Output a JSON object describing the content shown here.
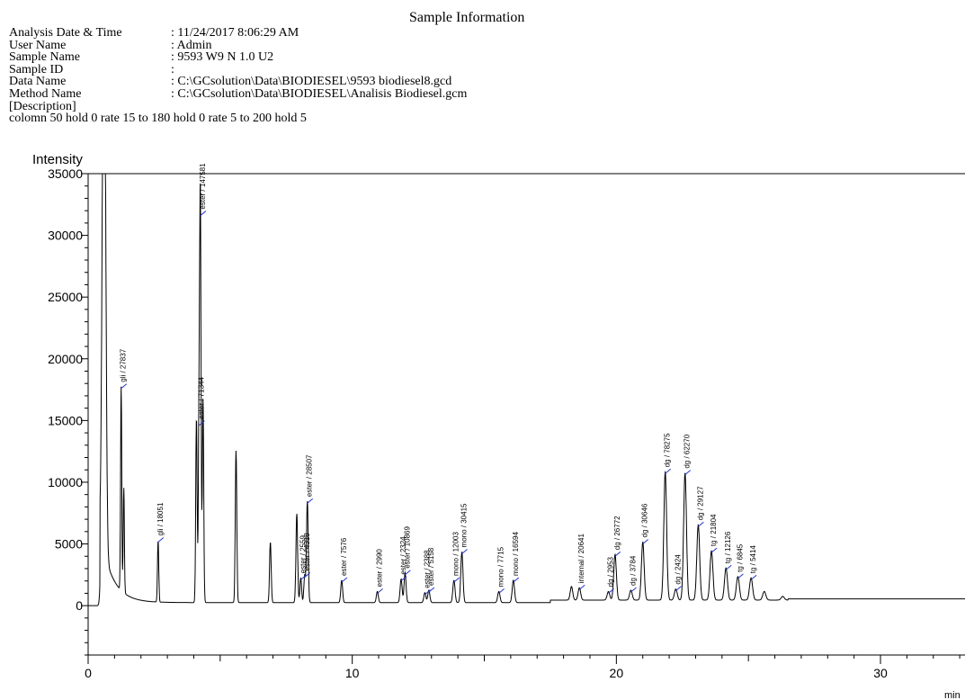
{
  "sample_info": {
    "title": "Sample Information",
    "rows": [
      {
        "label": "Analysis Date & Time",
        "value": ": 11/24/2017 8:06:29 AM"
      },
      {
        "label": "User Name",
        "value": ": Admin"
      },
      {
        "label": "Sample Name",
        "value": ": 9593 W9 N 1.0 U2"
      },
      {
        "label": "Sample ID",
        "value": ":"
      },
      {
        "label": "Data Name",
        "value": ": C:\\GCsolution\\Data\\BIODIESEL\\9593  biodiesel8.gcd"
      },
      {
        "label": "Method Name",
        "value": ": C:\\GCsolution\\Data\\BIODIESEL\\Analisis Biodiesel.gcm"
      }
    ],
    "description_label": "[Description]",
    "description": "colomn 50 hold 0 rate 15 to 180 hold 0 rate 5 to 200 hold 5"
  },
  "chart_data": {
    "type": "line",
    "ylabel": "Intensity",
    "xlabel": "min",
    "xlim": [
      0,
      33.2
    ],
    "ylim": [
      -4000,
      35000
    ],
    "x_ticks": [
      0,
      10,
      20,
      30
    ],
    "y_ticks": [
      0,
      5000,
      10000,
      15000,
      20000,
      25000,
      30000,
      35000
    ],
    "colors": {
      "trace": "#000000",
      "marker": "#2233cc"
    },
    "peaks": [
      {
        "t": 0.6,
        "h": 52000
      },
      {
        "t": 1.25,
        "h": 16500,
        "label": "gli / 27837"
      },
      {
        "t": 1.35,
        "h": 8500
      },
      {
        "t": 2.65,
        "h": 5000,
        "label": "gli / 18051"
      },
      {
        "t": 4.1,
        "h": 15000
      },
      {
        "t": 4.2,
        "h": 14500,
        "label": "ester / 71344"
      },
      {
        "t": 4.25,
        "h": 31500,
        "label": "ester / 147581"
      },
      {
        "t": 4.35,
        "h": 16500
      },
      {
        "t": 5.6,
        "h": 12300
      },
      {
        "t": 6.9,
        "h": 4900
      },
      {
        "t": 7.9,
        "h": 7200
      },
      {
        "t": 8.05,
        "h": 2000,
        "label": "ester / 2559"
      },
      {
        "t": 8.2,
        "h": 2200,
        "label": "ester / 4318"
      },
      {
        "t": 8.3,
        "h": 8200,
        "label": "ester / 28507"
      },
      {
        "t": 9.6,
        "h": 1800,
        "label": "ester / 7576"
      },
      {
        "t": 10.95,
        "h": 900,
        "label": "ester / 2990"
      },
      {
        "t": 11.85,
        "h": 1900,
        "label": "ester / 2324"
      },
      {
        "t": 12.0,
        "h": 2400,
        "label": "ester / 10869"
      },
      {
        "t": 12.75,
        "h": 800,
        "label": "ester / 2388"
      },
      {
        "t": 12.9,
        "h": 1000,
        "label": "ester / 5158"
      },
      {
        "t": 13.85,
        "h": 1800,
        "label": "mono / 12003"
      },
      {
        "t": 14.15,
        "h": 4100,
        "label": "mono / 30415"
      },
      {
        "t": 15.55,
        "h": 900,
        "label": "mono / 7715"
      },
      {
        "t": 16.1,
        "h": 1800,
        "label": "mono / 16594"
      },
      {
        "t": 18.3,
        "h": 1100
      },
      {
        "t": 18.6,
        "h": 1000,
        "label": "internal / 20641"
      },
      {
        "t": 19.7,
        "h": 700,
        "label": "dg / 2953"
      },
      {
        "t": 19.95,
        "h": 3700,
        "label": "dg / 26772"
      },
      {
        "t": 20.55,
        "h": 800,
        "label": "dg / 3784"
      },
      {
        "t": 21.0,
        "h": 4700,
        "label": "dg / 30646"
      },
      {
        "t": 21.85,
        "h": 10400,
        "label": "dg / 78275"
      },
      {
        "t": 22.25,
        "h": 900,
        "label": "dg / 2424"
      },
      {
        "t": 22.6,
        "h": 10300,
        "label": "dg / 62270"
      },
      {
        "t": 23.1,
        "h": 6100,
        "label": "dg / 29127"
      },
      {
        "t": 23.6,
        "h": 4000,
        "label": "tg / 21804"
      },
      {
        "t": 24.15,
        "h": 2600,
        "label": "tg / 12126"
      },
      {
        "t": 24.6,
        "h": 1900,
        "label": "tg / 6845"
      },
      {
        "t": 25.1,
        "h": 1800,
        "label": "tg / 5414"
      },
      {
        "t": 25.6,
        "h": 700
      },
      {
        "t": 26.3,
        "h": 300
      }
    ]
  }
}
